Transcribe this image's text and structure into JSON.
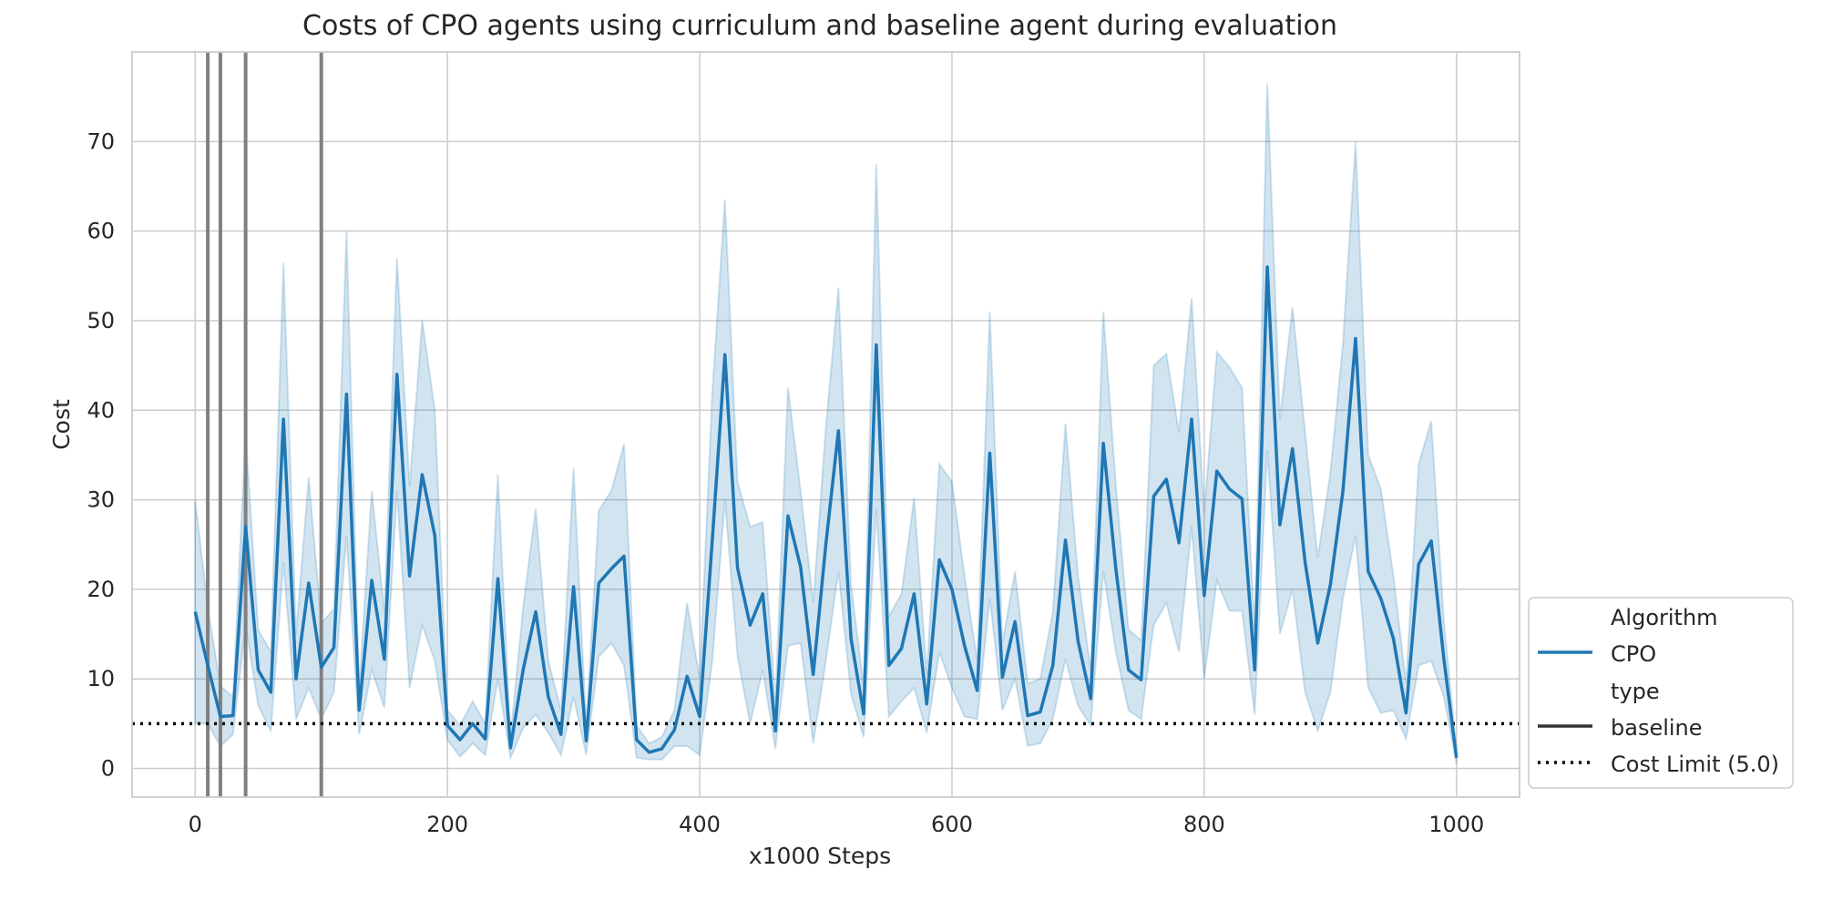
{
  "chart_data": {
    "type": "line",
    "title": "Costs of CPO agents using curriculum and baseline agent during evaluation",
    "xlabel": "x1000 Steps",
    "ylabel": "Cost",
    "xlim": [
      -50,
      1050
    ],
    "ylim": [
      -3.2,
      80
    ],
    "xticks": [
      0,
      200,
      400,
      600,
      800,
      1000
    ],
    "yticks": [
      0,
      10,
      20,
      30,
      40,
      50,
      60,
      70
    ],
    "grid": true,
    "legend_position": "lower-right outside",
    "legend": {
      "algorithm_header": "Algorithm",
      "algorithm_entry": "CPO",
      "type_header": "type",
      "type_entry": "baseline",
      "limit_entry": "Cost Limit (5.0)"
    },
    "cost_limit": 5.0,
    "curriculum_stage_lines_x": [
      10,
      20,
      40,
      100
    ],
    "colors": {
      "series": "#1f77b4",
      "band": "#1f77b4",
      "stage_lines": "#808080",
      "limit_line": "#000000",
      "grid": "#cccccc"
    },
    "series": [
      {
        "name": "CPO",
        "x": [
          0,
          10,
          20,
          30,
          40,
          50,
          60,
          70,
          80,
          90,
          100,
          110,
          120,
          130,
          140,
          150,
          160,
          170,
          180,
          190,
          200,
          210,
          220,
          230,
          240,
          250,
          260,
          270,
          280,
          290,
          300,
          310,
          320,
          330,
          340,
          350,
          360,
          370,
          380,
          390,
          400,
          410,
          420,
          430,
          440,
          450,
          460,
          470,
          480,
          490,
          500,
          510,
          520,
          530,
          540,
          550,
          560,
          570,
          580,
          590,
          600,
          610,
          620,
          630,
          640,
          650,
          660,
          670,
          680,
          690,
          700,
          710,
          720,
          730,
          740,
          750,
          760,
          770,
          780,
          790,
          800,
          810,
          820,
          830,
          840,
          850,
          860,
          870,
          880,
          890,
          900,
          910,
          920,
          930,
          940,
          950,
          960,
          970,
          980,
          990,
          1000
        ],
        "y": [
          17.5,
          11.5,
          5.8,
          5.9,
          27,
          11,
          8.5,
          39,
          10,
          20.7,
          11.3,
          13.5,
          41.8,
          6.5,
          21,
          12.2,
          44,
          21.5,
          32.8,
          26,
          4.8,
          3.2,
          5,
          3.3,
          21.2,
          2.3,
          11,
          17.5,
          8,
          3.8,
          20.3,
          3.1,
          20.7,
          22.3,
          23.7,
          3.2,
          1.8,
          2.2,
          4.3,
          10.3,
          5.8,
          25.5,
          46.2,
          22.4,
          16,
          19.5,
          4.2,
          28.2,
          22.5,
          10.5,
          25,
          37.7,
          14.5,
          6.1,
          47.3,
          11.5,
          13.4,
          19.5,
          7.2,
          23.3,
          20,
          13.7,
          8.7,
          35.2,
          10.2,
          16.4,
          5.9,
          6.3,
          11.5,
          25.5,
          14.2,
          7.8,
          36.3,
          22.2,
          11,
          9.9,
          30.4,
          32.3,
          25.2,
          39,
          19.3,
          33.2,
          31.2,
          30.1,
          11,
          56,
          27.2,
          35.7,
          23,
          14,
          20.5,
          31,
          48,
          22,
          19,
          14.5,
          6.2,
          22.8,
          25.4,
          12.2,
          1.2
        ],
        "lower": [
          5,
          5,
          2.5,
          3.8,
          16,
          7,
          4.2,
          23,
          5.5,
          9,
          5.5,
          8.5,
          26,
          3.8,
          11,
          6.8,
          31,
          9,
          16,
          12,
          3.2,
          1.3,
          2.8,
          1.5,
          10,
          1.2,
          4.5,
          6,
          4,
          1.5,
          8,
          1.5,
          12.5,
          14,
          11.5,
          1.2,
          1,
          1,
          2.5,
          2.5,
          1.5,
          12,
          30,
          12.5,
          5,
          11,
          2.2,
          13.7,
          14,
          2.8,
          12,
          22,
          8.3,
          3.5,
          29,
          5.8,
          7.5,
          9,
          4,
          13,
          9,
          5.8,
          5.5,
          19,
          6.5,
          10,
          2.5,
          2.8,
          5.5,
          12.2,
          7,
          4.8,
          22,
          13,
          6.5,
          5.5,
          16,
          18.5,
          13,
          27,
          10,
          21,
          17.6,
          17.6,
          6,
          35.5,
          15,
          20,
          8.5,
          4.2,
          8.5,
          19,
          26,
          9,
          6.2,
          6.5,
          3.3,
          11.5,
          12,
          8,
          0.5
        ],
        "upper": [
          30,
          18,
          9.2,
          8,
          37.5,
          15.5,
          13,
          56.5,
          15,
          32.5,
          16.2,
          17.8,
          60,
          8.8,
          31,
          17.5,
          57,
          31.5,
          50,
          40,
          6.5,
          4.8,
          7.5,
          5,
          32.8,
          3.5,
          18,
          29,
          12,
          6.5,
          33.5,
          4.8,
          28.8,
          31,
          36.2,
          4.8,
          2.8,
          3.5,
          6.5,
          18.5,
          10,
          42,
          63.5,
          32,
          27,
          27.5,
          7.5,
          42.5,
          31,
          18.5,
          38,
          53.7,
          20.5,
          9.2,
          67.5,
          17,
          19.5,
          30.2,
          10.5,
          34,
          32,
          21.5,
          12,
          51,
          14,
          22,
          9.5,
          10,
          17.5,
          38.5,
          21.5,
          11,
          51,
          31.5,
          15.5,
          14.3,
          45,
          46.3,
          37.5,
          52.5,
          28.5,
          46.5,
          44.8,
          42.5,
          15.5,
          76.5,
          39,
          51.5,
          37.5,
          23.5,
          33,
          47.5,
          70,
          35,
          31.2,
          21.5,
          9.5,
          34,
          38.8,
          16.5,
          2
        ]
      }
    ]
  }
}
